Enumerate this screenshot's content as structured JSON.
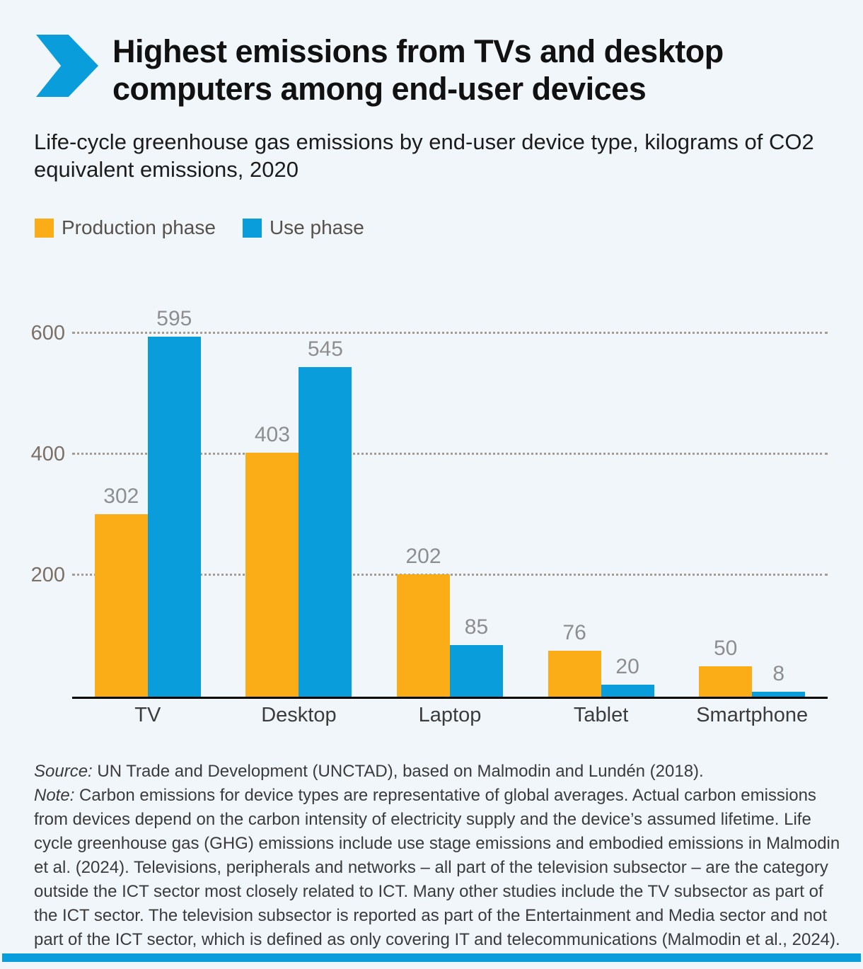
{
  "page": {
    "background": "#F1F6FB",
    "accent_blue": "#0A9DDB",
    "accent_orange": "#FBAD17"
  },
  "header": {
    "title_lines": [
      "Highest emissions from TVs and desktop",
      "computers among end-user devices"
    ],
    "subtitle": "Life-cycle greenhouse gas emissions by end-user device type, kilograms of CO2 equivalent emissions, 2020"
  },
  "legend": [
    {
      "label": "Production phase",
      "color": "#FBAD17"
    },
    {
      "label": "Use phase",
      "color": "#0A9DDB"
    }
  ],
  "chart_data": {
    "type": "bar",
    "title": "Life-cycle greenhouse gas emissions by end-user device type, kilograms of CO2 equivalent emissions, 2020",
    "categories": [
      "TV",
      "Desktop",
      "Laptop",
      "Tablet",
      "Smartphone"
    ],
    "series": [
      {
        "name": "Production phase",
        "color": "#FBAD17",
        "values": [
          302,
          403,
          202,
          76,
          50
        ]
      },
      {
        "name": "Use phase",
        "color": "#0A9DDB",
        "values": [
          595,
          545,
          85,
          20,
          8
        ]
      }
    ],
    "xlabel": "",
    "ylabel": "",
    "yticks": [
      200,
      400,
      600
    ],
    "ylim": [
      0,
      649
    ],
    "grid": "horizontal-dotted",
    "legend_position": "top-left",
    "value_labels": true
  },
  "footer": {
    "source_label": "Source:",
    "source_text": " UN Trade and Development (UNCTAD), based on Malmodin and Lundén (2018).",
    "note_label": "Note:",
    "note_text": " Carbon emissions for device types are representative of global averages. Actual carbon emissions from devices depend on the carbon intensity of electricity supply and the device’s assumed lifetime. Life cycle greenhouse gas (GHG) emissions include use stage emissions and embodied emissions in Malmodin et al. (2024). Televisions, peripherals and networks – all part of the television subsector – are the category outside the ICT sector most closely related to ICT. Many other studies include the TV subsector as part of the ICT sector. The television subsector is reported as part of the Entertainment and Media sector and not part of the ICT sector, which is defined as only covering IT and telecommunications (Malmodin et al., 2024)."
  }
}
